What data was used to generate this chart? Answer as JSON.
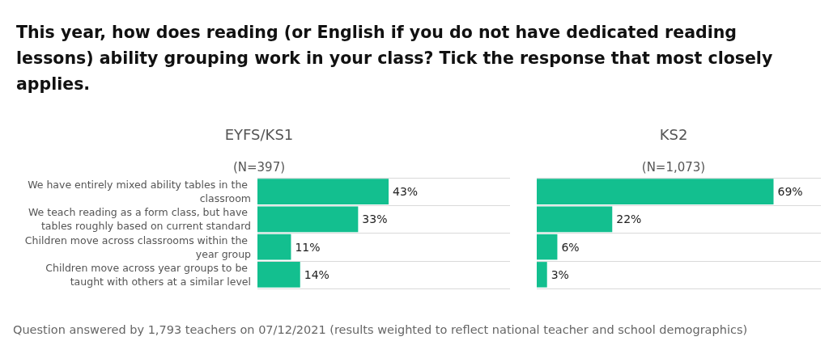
{
  "chart_data": [
    {
      "type": "other",
      "title": "This year, how does reading (or English if you do not have dedicated reading lessons) ability grouping work in your class? Tick the response that most closely applies.",
      "annotations": [
        "Question answered by 1,793 teachers on 07/12/2021 (results weighted to reflect national teacher and school demographics)"
      ]
    },
    {
      "type": "bar",
      "orientation": "horizontal",
      "title": "EYFS/KS1",
      "subtitle": "(N=397)",
      "categories": [
        "We have entirely mixed ability tables in the classroom",
        "We teach reading as a form class, but have tables roughly based on current standard",
        "Children move across classrooms within the year group",
        "Children move across year groups to be taught with others at a similar level"
      ],
      "values": [
        43,
        33,
        11,
        14
      ],
      "value_labels": [
        "43%",
        "33%",
        "11%",
        "14%"
      ],
      "color": "#13bf8f",
      "tick_labels": "y",
      "grid": "y"
    },
    {
      "type": "bar",
      "orientation": "horizontal",
      "title": "KS2",
      "subtitle": "(N=1,073)",
      "categories": [
        null,
        null,
        null,
        null
      ],
      "values": [
        69,
        22,
        6,
        3
      ],
      "value_labels": [
        "69%",
        "22%",
        "6%",
        "3%"
      ],
      "color": "#13bf8f",
      "tick_labels": false,
      "grid": "y"
    }
  ]
}
